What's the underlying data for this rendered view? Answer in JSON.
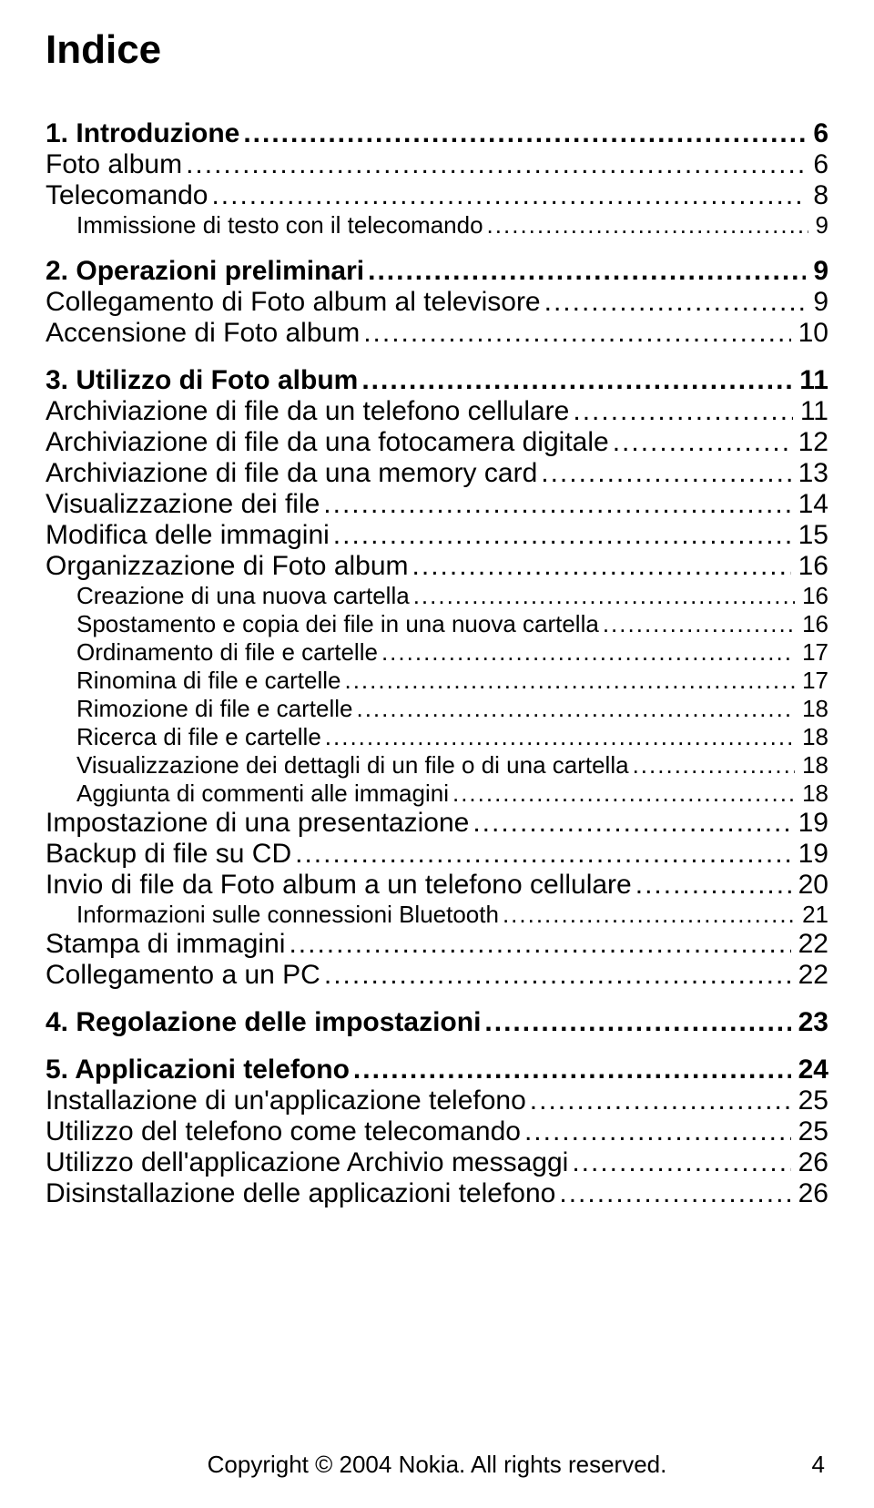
{
  "title": "Indice",
  "footer": "Copyright © 2004 Nokia. All rights reserved.",
  "page_number": "4",
  "entries": [
    {
      "level": 0,
      "label": "1. Introduzione",
      "page": "6"
    },
    {
      "level": 1,
      "label": "Foto album",
      "page": "6"
    },
    {
      "level": 1,
      "label": "Telecomando",
      "page": "8"
    },
    {
      "level": 2,
      "label": "Immissione di testo con il telecomando",
      "page": "9"
    },
    {
      "level": 0,
      "label": "2. Operazioni preliminari",
      "page": "9"
    },
    {
      "level": 1,
      "label": "Collegamento di Foto album al televisore",
      "page": "9"
    },
    {
      "level": 1,
      "label": "Accensione di Foto album",
      "page": "10"
    },
    {
      "level": 0,
      "label": "3. Utilizzo di Foto album",
      "page": "11"
    },
    {
      "level": 1,
      "label": "Archiviazione di file da un telefono cellulare",
      "page": "11"
    },
    {
      "level": 1,
      "label": "Archiviazione di file da una fotocamera digitale",
      "page": "12"
    },
    {
      "level": 1,
      "label": "Archiviazione di file da una memory card",
      "page": "13"
    },
    {
      "level": 1,
      "label": "Visualizzazione dei file",
      "page": "14"
    },
    {
      "level": 1,
      "label": "Modifica delle immagini",
      "page": "15"
    },
    {
      "level": 1,
      "label": "Organizzazione di Foto album",
      "page": "16"
    },
    {
      "level": 2,
      "label": "Creazione di una nuova cartella",
      "page": "16"
    },
    {
      "level": 2,
      "label": "Spostamento e copia dei file in una nuova cartella",
      "page": "16"
    },
    {
      "level": 2,
      "label": "Ordinamento di file e cartelle",
      "page": "17"
    },
    {
      "level": 2,
      "label": "Rinomina di file e cartelle",
      "page": "17"
    },
    {
      "level": 2,
      "label": "Rimozione di file e cartelle",
      "page": "18"
    },
    {
      "level": 2,
      "label": "Ricerca di file e cartelle",
      "page": "18"
    },
    {
      "level": 2,
      "label": "Visualizzazione dei dettagli di un file o di una cartella",
      "page": "18"
    },
    {
      "level": 2,
      "label": "Aggiunta di commenti alle immagini",
      "page": "18"
    },
    {
      "level": 1,
      "label": "Impostazione di una presentazione",
      "page": "19"
    },
    {
      "level": 1,
      "label": "Backup di file su CD",
      "page": "19"
    },
    {
      "level": 1,
      "label": "Invio di file da Foto album a un telefono cellulare",
      "page": "20"
    },
    {
      "level": 2,
      "label": "Informazioni sulle connessioni Bluetooth",
      "page": "21"
    },
    {
      "level": 1,
      "label": "Stampa di immagini",
      "page": "22"
    },
    {
      "level": 1,
      "label": "Collegamento a un PC",
      "page": "22"
    },
    {
      "level": 0,
      "label": "4. Regolazione delle impostazioni",
      "page": "23"
    },
    {
      "level": 0,
      "label": "5. Applicazioni telefono",
      "page": "24"
    },
    {
      "level": 1,
      "label": "Installazione di un'applicazione telefono",
      "page": "25"
    },
    {
      "level": 1,
      "label": "Utilizzo del telefono come telecomando",
      "page": "25"
    },
    {
      "level": 1,
      "label": "Utilizzo dell'applicazione Archivio messaggi",
      "page": "26"
    },
    {
      "level": 1,
      "label": "Disinstallazione delle applicazioni telefono",
      "page": "26"
    }
  ]
}
